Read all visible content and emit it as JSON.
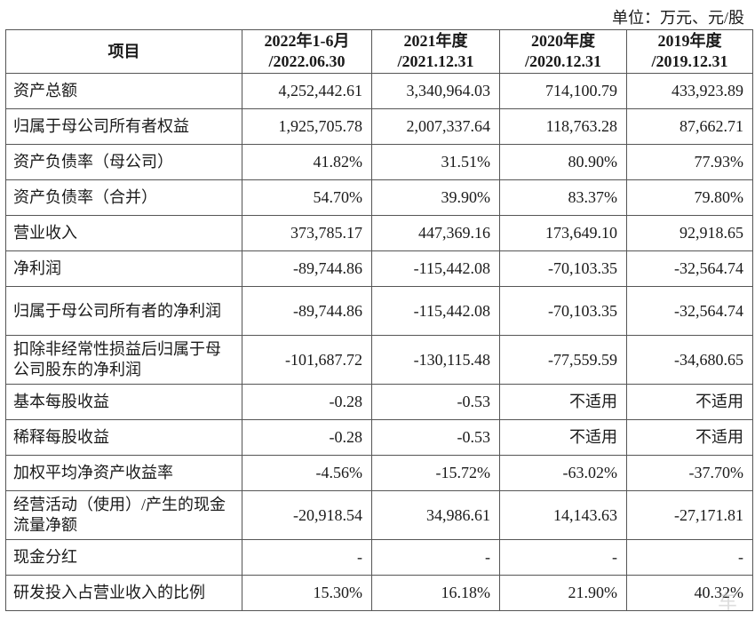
{
  "unit_note": "单位：万元、元/股",
  "headers": [
    "项目",
    "2022年1-6月\n/2022.06.30",
    "2021年度\n/2021.12.31",
    "2020年度\n/2020.12.31",
    "2019年度\n/2019.12.31"
  ],
  "header_lines": [
    {
      "a": "2022年1-6月",
      "b": "/2022.06.30"
    },
    {
      "a": "2021年度",
      "b": "/2021.12.31"
    },
    {
      "a": "2020年度",
      "b": "/2020.12.31"
    },
    {
      "a": "2019年度",
      "b": "/2019.12.31"
    }
  ],
  "rows": [
    {
      "label": "资产总额",
      "values": [
        "4,252,442.61",
        "3,340,964.03",
        "714,100.79",
        "433,923.89"
      ]
    },
    {
      "label": "归属于母公司所有者权益",
      "values": [
        "1,925,705.78",
        "2,007,337.64",
        "118,763.28",
        "87,662.71"
      ]
    },
    {
      "label": "资产负债率（母公司）",
      "values": [
        "41.82%",
        "31.51%",
        "80.90%",
        "77.93%"
      ]
    },
    {
      "label": "资产负债率（合并）",
      "values": [
        "54.70%",
        "39.90%",
        "83.37%",
        "79.80%"
      ]
    },
    {
      "label": "营业收入",
      "values": [
        "373,785.17",
        "447,369.16",
        "173,649.10",
        "92,918.65"
      ]
    },
    {
      "label": "净利润",
      "values": [
        "-89,744.86",
        "-115,442.08",
        "-70,103.35",
        "-32,564.74"
      ]
    },
    {
      "label": "归属于母公司所有者的净利润",
      "values": [
        "-89,744.86",
        "-115,442.08",
        "-70,103.35",
        "-32,564.74"
      ]
    },
    {
      "label": "扣除非经常性损益后归属于母公司股东的净利润",
      "values": [
        "-101,687.72",
        "-130,115.48",
        "-77,559.59",
        "-34,680.65"
      ]
    },
    {
      "label": "基本每股收益",
      "values": [
        "-0.28",
        "-0.53",
        "不适用",
        "不适用"
      ]
    },
    {
      "label": "稀释每股收益",
      "values": [
        "-0.28",
        "-0.53",
        "不适用",
        "不适用"
      ]
    },
    {
      "label": "加权平均净资产收益率",
      "values": [
        "-4.56%",
        "-15.72%",
        "-63.02%",
        "-37.70%"
      ]
    },
    {
      "label": "经营活动（使用）/产生的现金流量净额",
      "values": [
        "-20,918.54",
        "34,986.61",
        "14,143.63",
        "-27,171.81"
      ]
    },
    {
      "label": "现金分红",
      "values": [
        "-",
        "-",
        "-",
        "-"
      ]
    },
    {
      "label": "研发投入占营业收入的比例",
      "values": [
        "15.30%",
        "16.18%",
        "21.90%",
        "40.32%"
      ]
    }
  ]
}
